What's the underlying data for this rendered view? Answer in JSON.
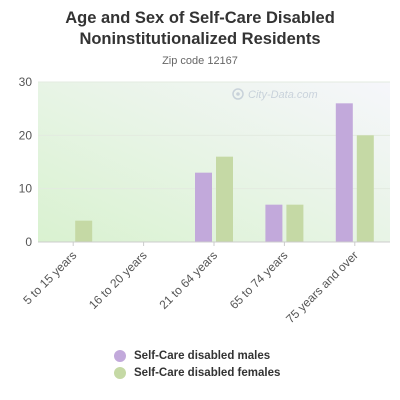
{
  "chart_data": {
    "type": "bar",
    "title": "Age and Sex of Self-Care Disabled Noninstitutionalized Residents",
    "subtitle": "Zip code 12167",
    "watermark": "City-Data.com",
    "categories": [
      "5 to 15 years",
      "16 to 20 years",
      "21 to 64 years",
      "65 to 74 years",
      "75 years and over"
    ],
    "series": [
      {
        "name": "Self-Care disabled males",
        "color": "#c2a9db",
        "values": [
          0,
          0,
          13,
          7,
          26
        ]
      },
      {
        "name": "Self-Care disabled females",
        "color": "#c5d9a5",
        "values": [
          4,
          0,
          16,
          7,
          20
        ]
      }
    ],
    "yticks": [
      0,
      10,
      20,
      30
    ],
    "ylim": [
      0,
      30
    ],
    "grid": true,
    "legend_position": "bottom"
  }
}
